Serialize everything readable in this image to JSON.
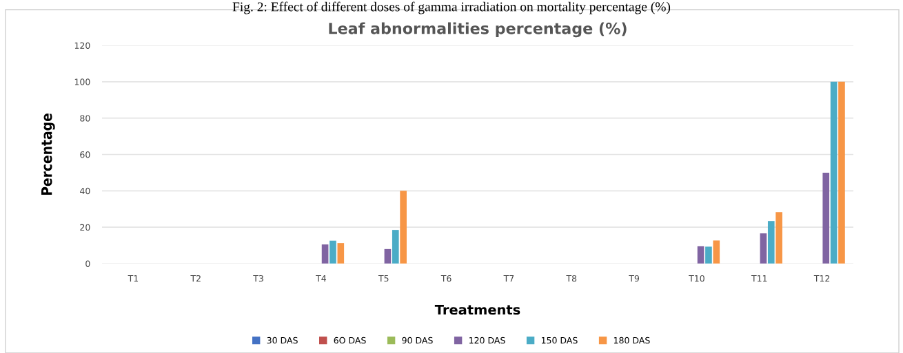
{
  "chart_data": {
    "type": "bar",
    "title": "Leaf abnormalities percentage (%)",
    "xlabel": "Treatments",
    "ylabel": "Percentage",
    "annotations": [
      "Fig. 2: Effect of different doses of gamma irradiation on mortality percentage (%)"
    ],
    "categories": [
      "T1",
      "T2",
      "T3",
      "T4",
      "T5",
      "T6",
      "T7",
      "T8",
      "T9",
      "T10",
      "T11",
      "T12"
    ],
    "series": [
      {
        "name": "30 DAS",
        "color": "#4472c4",
        "values": [
          0,
          0,
          0,
          0,
          0,
          0,
          0,
          0,
          0,
          0,
          0,
          0
        ]
      },
      {
        "name": "6O DAS",
        "color": "#c0504d",
        "values": [
          0,
          0,
          0,
          0,
          0,
          0,
          0,
          0,
          0,
          0,
          0,
          0
        ]
      },
      {
        "name": "90 DAS",
        "color": "#9bbb59",
        "values": [
          0,
          0,
          0,
          0,
          0,
          0,
          0,
          0,
          0,
          0,
          0,
          0
        ]
      },
      {
        "name": "120 DAS",
        "color": "#8064a2",
        "values": [
          0,
          0,
          0,
          10.5,
          8,
          0,
          0,
          0,
          0,
          9.5,
          16.6,
          50
        ]
      },
      {
        "name": "150 DAS",
        "color": "#4bacc6",
        "values": [
          0,
          0,
          0,
          12.6,
          18.5,
          0,
          0,
          0,
          0,
          9.3,
          23.4,
          100
        ]
      },
      {
        "name": "180 DAS",
        "color": "#f79646",
        "values": [
          0,
          0,
          0,
          11.3,
          40,
          0,
          0,
          0,
          0,
          12.7,
          28.3,
          100
        ]
      }
    ],
    "ylim": [
      0,
      120
    ],
    "yticks": [
      0,
      20,
      40,
      60,
      80,
      100,
      120
    ],
    "grid": "y",
    "legend": "bottom"
  }
}
